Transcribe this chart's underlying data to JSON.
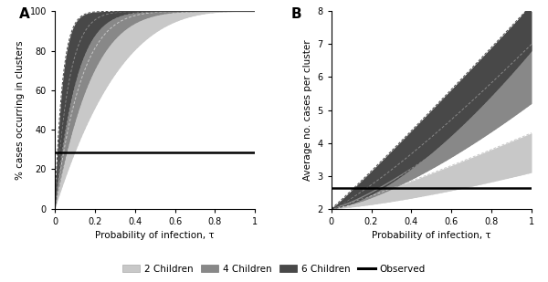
{
  "colors": {
    "2ch": "#c8c8c8",
    "4ch": "#888888",
    "6ch": "#484848"
  },
  "observed_A": 28.5,
  "observed_B": 2.62,
  "panel_A_xlabel": "Probability of infection, τ",
  "panel_A_ylabel": "% cases occurring in clusters",
  "panel_B_xlabel": "Probability of infection, τ",
  "panel_B_ylabel": "Average no. cases per cluster",
  "panel_A_label": "A",
  "panel_B_label": "B",
  "legend_labels": [
    "2 Children",
    "4 Children",
    "6 Children",
    "Observed"
  ],
  "legend_colors": [
    "#c8c8c8",
    "#888888",
    "#484848",
    "#000000"
  ],
  "A_ylim": [
    0,
    100
  ],
  "B_ylim": [
    2,
    8
  ],
  "label_fontsize": 7.5,
  "tick_fontsize": 7
}
